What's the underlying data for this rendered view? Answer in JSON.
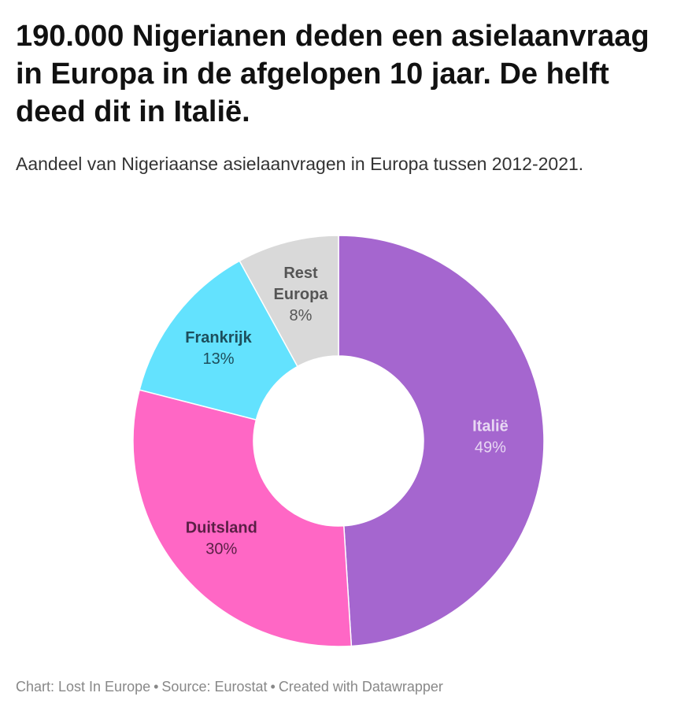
{
  "title": "190.000 Nigerianen deden een asielaanvraag in Europa in de afgelopen 10 jaar. De helft deed dit in Italië.",
  "subtitle": "Aandeel van Nigeriaanse asielaanvragen in Europa tussen 2012-2021.",
  "footer": {
    "chart": "Chart: Lost In Europe",
    "source": "Source: Eurostat",
    "created": "Created with Datawrapper",
    "separator": "•"
  },
  "chart_data": {
    "type": "pie",
    "variant": "donut",
    "title": "190.000 Nigerianen deden een asielaanvraag in Europa in de afgelopen 10 jaar. De helft deed dit in Italië.",
    "subtitle": "Aandeel van Nigeriaanse asielaanvragen in Europa tussen 2012-2021.",
    "unit": "%",
    "slices": [
      {
        "label": "Italië",
        "label_lines": [
          "Italië"
        ],
        "value": 49,
        "value_label": "49%",
        "color": "#a566cf",
        "label_color": "#e8d8f3"
      },
      {
        "label": "Duitsland",
        "label_lines": [
          "Duitsland"
        ],
        "value": 30,
        "value_label": "30%",
        "color": "#ff67c5",
        "label_color": "#5a1f45"
      },
      {
        "label": "Frankrijk",
        "label_lines": [
          "Frankrijk"
        ],
        "value": 13,
        "value_label": "13%",
        "color": "#63e2fe",
        "label_color": "#1d4e5c"
      },
      {
        "label": "Rest Europa",
        "label_lines": [
          "Rest",
          "Europa"
        ],
        "value": 8,
        "value_label": "8%",
        "color": "#d9d9d9",
        "label_color": "#555555"
      }
    ]
  }
}
